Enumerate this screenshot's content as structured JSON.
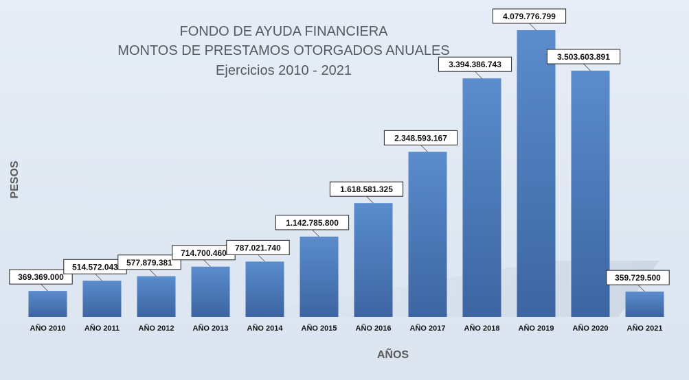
{
  "chart_data": {
    "type": "bar",
    "title": [
      "FONDO DE AYUDA FINANCIERA",
      "MONTOS DE PRESTAMOS OTORGADOS ANUALES",
      "Ejercicios 2010 - 2021"
    ],
    "xlabel": "AÑOS",
    "ylabel": "PESOS",
    "categories": [
      "AÑO 2010",
      "AÑO 2011",
      "AÑO 2012",
      "AÑO 2013",
      "AÑO 2014",
      "AÑO 2015",
      "AÑO 2016",
      "AÑO 2017",
      "AÑO 2018",
      "AÑO 2019",
      "AÑO 2020",
      "AÑO 2021"
    ],
    "values": [
      369369000,
      514572043,
      577879381,
      714700460,
      787021740,
      1142785800,
      1618581325,
      2348593167,
      3394386743,
      4079776799,
      3503603891,
      359729500
    ],
    "value_labels": [
      "369.369.000",
      "514.572.043",
      "577.879.381",
      "714.700.460",
      "787.021.740",
      "1.142.785.800",
      "1.618.581.325",
      "2.348.593.167",
      "3.394.386.743",
      "4.079.776.799",
      "3.503.603.891",
      "359.729.500"
    ],
    "ylim": [
      0,
      4079776799
    ],
    "grid": false,
    "colors": {
      "bar_top": "#5b8ccc",
      "bar_bottom": "#3c65a2",
      "background": "#e2e9f3"
    }
  }
}
